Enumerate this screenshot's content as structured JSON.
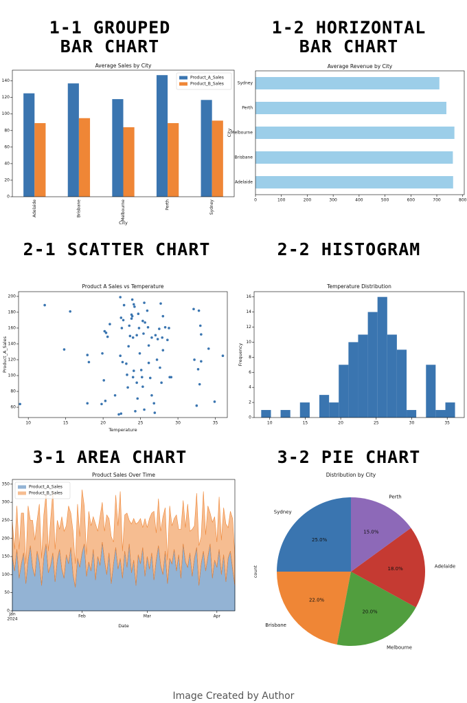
{
  "headings": [
    "1-1 GROUPED\nBAR CHART",
    "1-2 HORIZONTAL\nBAR CHART",
    "2-1 SCATTER CHART",
    "2-2 HISTOGRAM",
    "3-1 AREA CHART",
    "3-2 PIE CHART"
  ],
  "caption": "Image Created by Author",
  "chart_data": [
    {
      "type": "bar",
      "title": "Average Sales by City",
      "xlabel": "City",
      "categories": [
        "Adelaide",
        "Brisbane",
        "Melbourne",
        "Perth",
        "Sydney"
      ],
      "series": [
        {
          "name": "Product_A_Sales",
          "color": "#3a75b0",
          "values": [
            125,
            137,
            118,
            147,
            117
          ]
        },
        {
          "name": "Product_B_Sales",
          "color": "#ef8636",
          "values": [
            89,
            95,
            84,
            89,
            92
          ]
        }
      ],
      "ylim": [
        0,
        153
      ],
      "yticks": [
        0,
        20,
        40,
        60,
        80,
        100,
        120,
        140
      ],
      "legend": "upper right"
    },
    {
      "type": "barh",
      "title": "Average Revenue by City",
      "ylabel": "City",
      "categories": [
        "Adelaide",
        "Brisbane",
        "Melbourne",
        "Perth",
        "Sydney"
      ],
      "values": [
        763,
        762,
        768,
        737,
        710
      ],
      "color": "#9ccee9",
      "xlim": [
        0,
        806
      ],
      "xticks": [
        0,
        100,
        200,
        300,
        400,
        500,
        600,
        700,
        800
      ]
    },
    {
      "type": "scatter",
      "title": "Product A Sales vs Temperature",
      "xlabel": "Temperature",
      "ylabel": "Product_A_Sales",
      "color": "#3a75b0",
      "x": [
        8.9,
        12.2,
        14.8,
        15.6,
        17.9,
        18.1,
        17.9,
        19.8,
        20.2,
        20.1,
        20.4,
        20.3,
        20.6,
        20.9,
        19.9,
        21.6,
        22.1,
        22.4,
        22.3,
        22.6,
        22.4,
        22.5,
        22.3,
        22.7,
        22.8,
        23.2,
        23.1,
        23.3,
        23.4,
        23.6,
        23.5,
        23.8,
        23.8,
        23.9,
        24.1,
        24.2,
        23.9,
        24.0,
        24.1,
        24.0,
        24.5,
        24.6,
        24.3,
        24.5,
        24.9,
        24.8,
        24.7,
        25.1,
        25.2,
        25.3,
        25.5,
        25.4,
        25.3,
        25.6,
        25.5,
        25.9,
        26.0,
        26.1,
        26.3,
        26.1,
        26.5,
        26.8,
        26.5,
        26.9,
        27.0,
        27.2,
        27.3,
        27.5,
        27.6,
        27.9,
        27.7,
        27.8,
        28.0,
        28.3,
        28.0,
        28.6,
        28.9,
        28.8,
        29.1,
        32.1,
        32.2,
        32.7,
        32.5,
        32.9,
        33.0,
        32.8,
        33.1,
        33.1,
        34.1,
        34.9,
        36.0
      ],
      "values": [
        64,
        189,
        133,
        181,
        126,
        117,
        65,
        64,
        156,
        94,
        154,
        68,
        149,
        165,
        128,
        75,
        51,
        52,
        125,
        117,
        173,
        160,
        199,
        170,
        189,
        101,
        115,
        85,
        137,
        150,
        163,
        177,
        172,
        196,
        190,
        187,
        175,
        148,
        106,
        98,
        91,
        71,
        55,
        151,
        128,
        160,
        178,
        107,
        98,
        86,
        57,
        153,
        169,
        167,
        192,
        182,
        161,
        138,
        97,
        116,
        75,
        65,
        148,
        53,
        151,
        120,
        146,
        159,
        110,
        148,
        191,
        91,
        132,
        161,
        175,
        145,
        98,
        160,
        98,
        184,
        120,
        108,
        62,
        89,
        163,
        182,
        152,
        118,
        134,
        67,
        125
      ],
      "xlim": [
        8.7,
        36.6
      ],
      "xticks": [
        10,
        15,
        20,
        25,
        30,
        35
      ],
      "ylim": [
        47,
        206
      ],
      "yticks": [
        60,
        80,
        100,
        120,
        140,
        160,
        180,
        200
      ]
    },
    {
      "type": "histogram",
      "title": "Temperature Distribution",
      "ylabel": "Frequency",
      "color": "#3a75b0",
      "bins": [
        8.8,
        10.17,
        11.53,
        12.9,
        14.26,
        15.63,
        16.99,
        18.36,
        19.72,
        21.09,
        22.45,
        23.82,
        25.18,
        26.55,
        27.91,
        29.28,
        30.64,
        32.01,
        33.37,
        34.74,
        36.1
      ],
      "values": [
        1,
        0,
        1,
        0,
        2,
        0,
        3,
        2,
        7,
        10,
        11,
        14,
        16,
        11,
        9,
        1,
        0,
        7,
        1,
        2
      ],
      "xlim": [
        7.8,
        37.4
      ],
      "xticks": [
        10,
        15,
        20,
        25,
        30,
        35
      ],
      "ylim": [
        0,
        16.7
      ],
      "yticks": [
        0,
        2,
        4,
        6,
        8,
        10,
        12,
        14,
        16
      ]
    },
    {
      "type": "area",
      "title": "Product Sales Over Time",
      "xlabel": "Date",
      "legend": "upper left",
      "categories": [
        "Jan\n2024",
        null,
        null,
        null,
        null,
        null,
        null,
        null,
        null,
        null,
        null,
        null,
        null,
        null,
        null,
        null,
        null,
        null,
        null,
        null,
        null,
        null,
        null,
        null,
        null,
        null,
        null,
        null,
        null,
        null,
        null,
        "Feb",
        null,
        null,
        null,
        null,
        null,
        null,
        null,
        null,
        null,
        null,
        null,
        null,
        null,
        null,
        null,
        null,
        null,
        null,
        null,
        null,
        null,
        null,
        null,
        null,
        null,
        null,
        null,
        null,
        "Mar",
        null,
        null,
        null,
        null,
        null,
        null,
        null,
        null,
        null,
        null,
        null,
        null,
        null,
        null,
        null,
        null,
        null,
        null,
        null,
        null,
        null,
        null,
        null,
        null,
        null,
        null,
        null,
        null,
        null,
        null,
        "Apr",
        null,
        null,
        null,
        null,
        null,
        null,
        null,
        null
      ],
      "series": [
        {
          "name": "Product_A_Sales",
          "color": "#3a75b0",
          "values": [
            150,
            110,
            170,
            90,
            130,
            160,
            75,
            140,
            180,
            120,
            95,
            165,
            135,
            70,
            150,
            185,
            105,
            125,
            160,
            80,
            140,
            170,
            115,
            90,
            155,
            130,
            175,
            100,
            65,
            145,
            120,
            160,
            185,
            95,
            135,
            110,
            170,
            85,
            150,
            125,
            190,
            140,
            100,
            160,
            75,
            130,
            175,
            115,
            145,
            90,
            165,
            120,
            185,
            105,
            140,
            70,
            155,
            130,
            175,
            95,
            150,
            115,
            160,
            85,
            140,
            180,
            125,
            100,
            165,
            75,
            145,
            130,
            170,
            110,
            155,
            90,
            185,
            135,
            120,
            160,
            95,
            145,
            175,
            70,
            130,
            165,
            110,
            150,
            185,
            90,
            140,
            120,
            170,
            100,
            155,
            80,
            145,
            165,
            115,
            70
          ]
        },
        {
          "name": "Product_B_Sales",
          "color": "#ef8636",
          "values": [
            95,
            60,
            120,
            80,
            140,
            110,
            55,
            150,
            70,
            130,
            100,
            85,
            160,
            75,
            115,
            140,
            60,
            125,
            170,
            90,
            110,
            55,
            145,
            130,
            80,
            160,
            95,
            120,
            65,
            150,
            85,
            175,
            105,
            60,
            140,
            125,
            90,
            155,
            70,
            135,
            110,
            80,
            165,
            95,
            130,
            60,
            145,
            120,
            185,
            75,
            100,
            150,
            65,
            135,
            115,
            170,
            90,
            125,
            55,
            160,
            80,
            140,
            110,
            190,
            75,
            130,
            95,
            160,
            120,
            65,
            145,
            105,
            85,
            155,
            70,
            135,
            120,
            95,
            175,
            60,
            130,
            90,
            150,
            110,
            75,
            165,
            100,
            140,
            85,
            155,
            120,
            70,
            145,
            95,
            130,
            160,
            85,
            110,
            140,
            80
          ]
        }
      ],
      "ylim": [
        0,
        363
      ],
      "yticks": [
        0,
        50,
        100,
        150,
        200,
        250,
        300,
        350
      ]
    },
    {
      "type": "pie",
      "title": "Distribution by City",
      "ylabel": "count",
      "categories": [
        "Sydney",
        "Brisbane",
        "Melbourne",
        "Adelaide",
        "Perth"
      ],
      "values": [
        25,
        22,
        20,
        18,
        15
      ],
      "value_labels": [
        "25.0%",
        "22.0%",
        "20.0%",
        "18.0%",
        "15.0%"
      ],
      "colors": [
        "#3a75b0",
        "#ef8636",
        "#519e3e",
        "#c53a32",
        "#8d69b8"
      ],
      "startangle": 90
    }
  ]
}
